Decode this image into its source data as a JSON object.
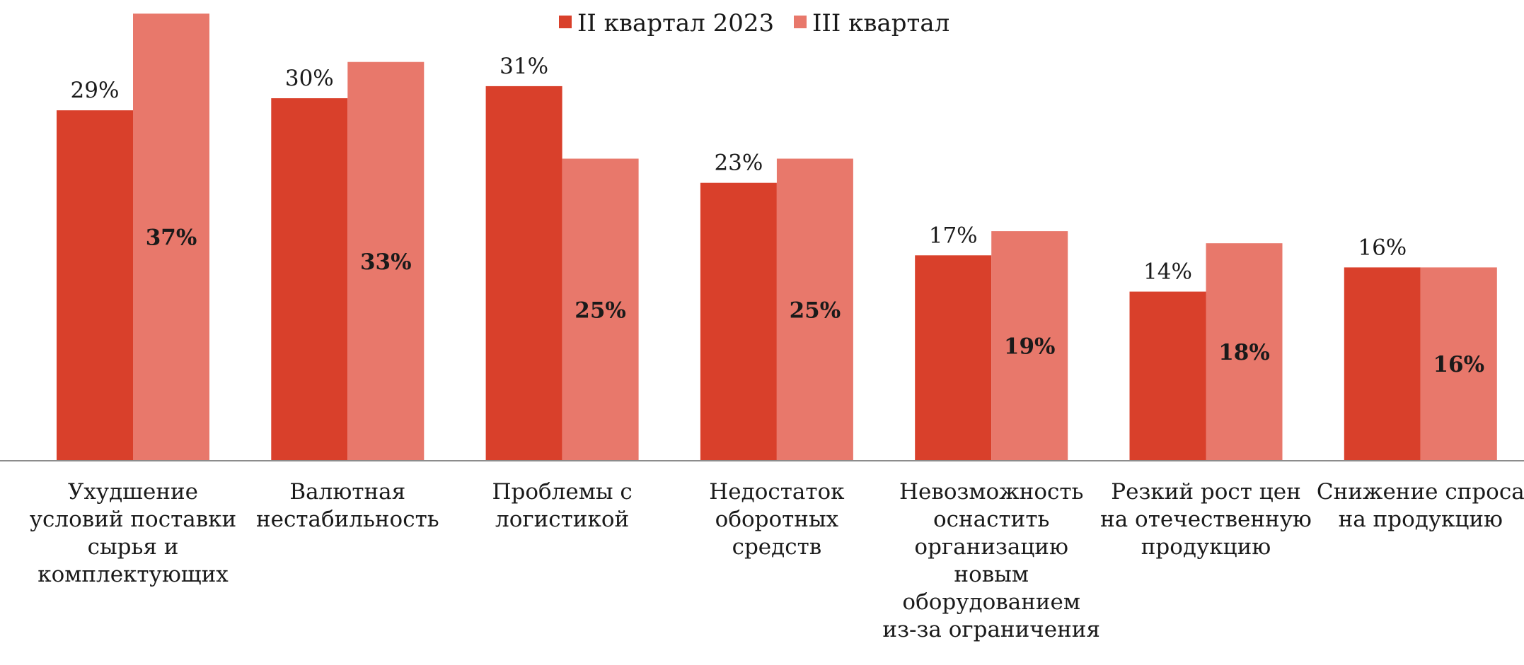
{
  "chart_data": {
    "type": "bar",
    "title": "",
    "xlabel": "",
    "ylabel": "",
    "ylim": [
      0,
      37
    ],
    "grid": false,
    "legend_position": "top",
    "categories": [
      [
        "Ухудшение",
        "условий поставки",
        "сырья и",
        "комплектующих"
      ],
      [
        "Валютная",
        "нестабильность"
      ],
      [
        "Проблемы с",
        "логистикой"
      ],
      [
        "Недостаток",
        "оборотных",
        "средств"
      ],
      [
        "Невозможность",
        "оснастить",
        "организацию",
        "новым",
        "оборудованием",
        "из-за ограничения"
      ],
      [
        "Резкий рост цен",
        "на отечественную",
        "продукцию"
      ],
      [
        "Снижение спроса",
        "на продукцию"
      ]
    ],
    "series": [
      {
        "name": "II квартал 2023",
        "color": "#d9402b",
        "values": [
          29,
          30,
          31,
          23,
          17,
          14,
          16
        ],
        "labels": [
          "29%",
          "30%",
          "31%",
          "23%",
          "17%",
          "14%",
          "16%"
        ]
      },
      {
        "name": "III квартал",
        "color": "#e8786b",
        "values": [
          37,
          33,
          25,
          25,
          19,
          18,
          16
        ],
        "labels": [
          "37%",
          "33%",
          "25%",
          "25%",
          "19%",
          "18%",
          "16%"
        ]
      }
    ]
  }
}
